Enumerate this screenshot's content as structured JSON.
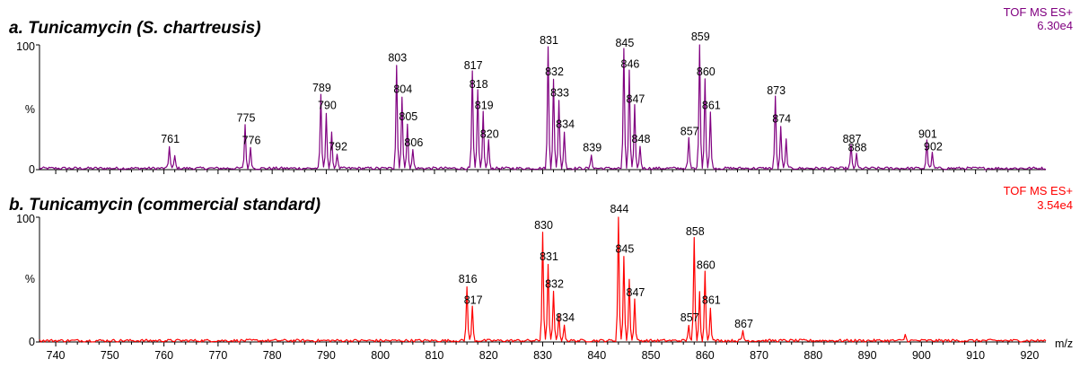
{
  "chart_data": [
    {
      "type": "line",
      "title": "a. Tunicamycin (S. chartreusis)",
      "instrument_label": "TOF MS ES+",
      "intensity_label": "6.30e4",
      "color": "#800080",
      "ylabel": "%",
      "y_ticks": [
        "100",
        "0"
      ],
      "ylim": [
        0,
        100
      ],
      "xlim": [
        737,
        923
      ],
      "x_axis_shown": false,
      "peaks": [
        {
          "x": 761,
          "y": 18,
          "label": "761"
        },
        {
          "x": 762,
          "y": 10
        },
        {
          "x": 775,
          "y": 35,
          "label": "775"
        },
        {
          "x": 776,
          "y": 17,
          "label": "776"
        },
        {
          "x": 789,
          "y": 59,
          "label": "789"
        },
        {
          "x": 790,
          "y": 45,
          "label": "790"
        },
        {
          "x": 791,
          "y": 28
        },
        {
          "x": 792,
          "y": 12,
          "label": "792"
        },
        {
          "x": 803,
          "y": 83,
          "label": "803"
        },
        {
          "x": 804,
          "y": 58,
          "label": "804"
        },
        {
          "x": 805,
          "y": 36,
          "label": "805"
        },
        {
          "x": 806,
          "y": 15,
          "label": "806"
        },
        {
          "x": 817,
          "y": 77,
          "label": "817"
        },
        {
          "x": 818,
          "y": 62,
          "label": "818"
        },
        {
          "x": 819,
          "y": 45,
          "label": "819"
        },
        {
          "x": 820,
          "y": 22,
          "label": "820"
        },
        {
          "x": 831,
          "y": 97,
          "label": "831"
        },
        {
          "x": 832,
          "y": 72,
          "label": "832"
        },
        {
          "x": 833,
          "y": 55,
          "label": "833"
        },
        {
          "x": 834,
          "y": 30,
          "label": "834"
        },
        {
          "x": 839,
          "y": 11,
          "label": "839"
        },
        {
          "x": 845,
          "y": 95,
          "label": "845"
        },
        {
          "x": 846,
          "y": 78,
          "label": "846"
        },
        {
          "x": 847,
          "y": 50,
          "label": "847"
        },
        {
          "x": 848,
          "y": 18,
          "label": "848"
        },
        {
          "x": 857,
          "y": 24,
          "label": "857"
        },
        {
          "x": 859,
          "y": 100,
          "label": "859"
        },
        {
          "x": 860,
          "y": 72,
          "label": "860"
        },
        {
          "x": 861,
          "y": 45,
          "label": "861"
        },
        {
          "x": 873,
          "y": 57,
          "label": "873"
        },
        {
          "x": 874,
          "y": 34,
          "label": "874"
        },
        {
          "x": 875,
          "y": 23
        },
        {
          "x": 887,
          "y": 18,
          "label": "887"
        },
        {
          "x": 888,
          "y": 11,
          "label": "888"
        },
        {
          "x": 901,
          "y": 22,
          "label": "901"
        },
        {
          "x": 902,
          "y": 12,
          "label": "902"
        }
      ]
    },
    {
      "type": "line",
      "title": "b. Tunicamycin (commercial standard)",
      "instrument_label": "TOF MS ES+",
      "intensity_label": "3.54e4",
      "color": "#ff0000",
      "ylabel": "%",
      "y_ticks": [
        "100",
        "0"
      ],
      "ylim": [
        0,
        100
      ],
      "xlim": [
        737,
        923
      ],
      "xlabel": "m/z",
      "x_ticks": [
        740,
        750,
        760,
        770,
        780,
        790,
        800,
        810,
        820,
        830,
        840,
        850,
        860,
        870,
        880,
        890,
        900,
        910,
        920
      ],
      "peaks": [
        {
          "x": 816,
          "y": 44,
          "label": "816"
        },
        {
          "x": 817,
          "y": 27,
          "label": "817"
        },
        {
          "x": 830,
          "y": 87,
          "label": "830"
        },
        {
          "x": 831,
          "y": 62,
          "label": "831"
        },
        {
          "x": 832,
          "y": 40,
          "label": "832"
        },
        {
          "x": 833,
          "y": 22
        },
        {
          "x": 834,
          "y": 13,
          "label": "834"
        },
        {
          "x": 844,
          "y": 100,
          "label": "844"
        },
        {
          "x": 845,
          "y": 68,
          "label": "845"
        },
        {
          "x": 846,
          "y": 50
        },
        {
          "x": 847,
          "y": 33,
          "label": "847"
        },
        {
          "x": 857,
          "y": 13,
          "label": "857"
        },
        {
          "x": 858,
          "y": 82,
          "label": "858"
        },
        {
          "x": 859,
          "y": 40
        },
        {
          "x": 860,
          "y": 55,
          "label": "860"
        },
        {
          "x": 861,
          "y": 27,
          "label": "861"
        },
        {
          "x": 867,
          "y": 8,
          "label": "867"
        },
        {
          "x": 897,
          "y": 5
        }
      ]
    }
  ]
}
